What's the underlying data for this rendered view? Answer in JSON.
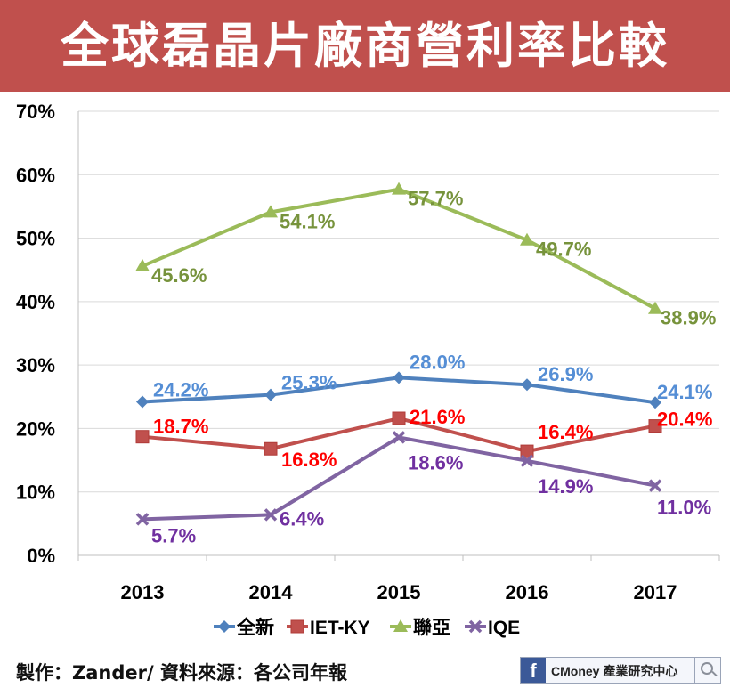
{
  "header": {
    "title": "全球磊晶片廠商營利率比較"
  },
  "chart_data": {
    "type": "line",
    "title": "全球磊晶片廠商營利率比較",
    "categories": [
      "2013",
      "2014",
      "2015",
      "2016",
      "2017"
    ],
    "ylim": [
      0,
      70
    ],
    "yticks": [
      "0%",
      "10%",
      "20%",
      "30%",
      "40%",
      "50%",
      "60%",
      "70%"
    ],
    "grid": true,
    "legend_position": "bottom",
    "series": [
      {
        "name": "全新",
        "marker": "diamond",
        "color": "#4f81bd",
        "label_color": "#558ed5",
        "values": [
          24.2,
          25.3,
          28.0,
          26.9,
          24.1
        ],
        "labels": [
          "24.2%",
          "25.3%",
          "28.0%",
          "26.9%",
          "24.1%"
        ]
      },
      {
        "name": "IET-KY",
        "marker": "square",
        "color": "#c0504d",
        "label_color": "#ff0000",
        "values": [
          18.7,
          16.8,
          21.6,
          16.4,
          20.4
        ],
        "labels": [
          "18.7%",
          "16.8%",
          "21.6%",
          "16.4%",
          "20.4%"
        ]
      },
      {
        "name": "聯亞",
        "marker": "triangle",
        "color": "#9bbb59",
        "label_color": "#77933c",
        "values": [
          45.6,
          54.1,
          57.7,
          49.7,
          38.9
        ],
        "labels": [
          "45.6%",
          "54.1%",
          "57.7%",
          "49.7%",
          "38.9%"
        ]
      },
      {
        "name": "IQE",
        "marker": "x",
        "color": "#8064a2",
        "label_color": "#7030a0",
        "values": [
          5.7,
          6.4,
          18.6,
          14.9,
          11.0
        ],
        "labels": [
          "5.7%",
          "6.4%",
          "18.6%",
          "14.9%",
          "11.0%"
        ]
      }
    ]
  },
  "footer": {
    "credit": "製作：Zander/ 資料來源：各公司年報",
    "brand_icon": "f",
    "brand_name": "CMoney 產業研究中心"
  }
}
